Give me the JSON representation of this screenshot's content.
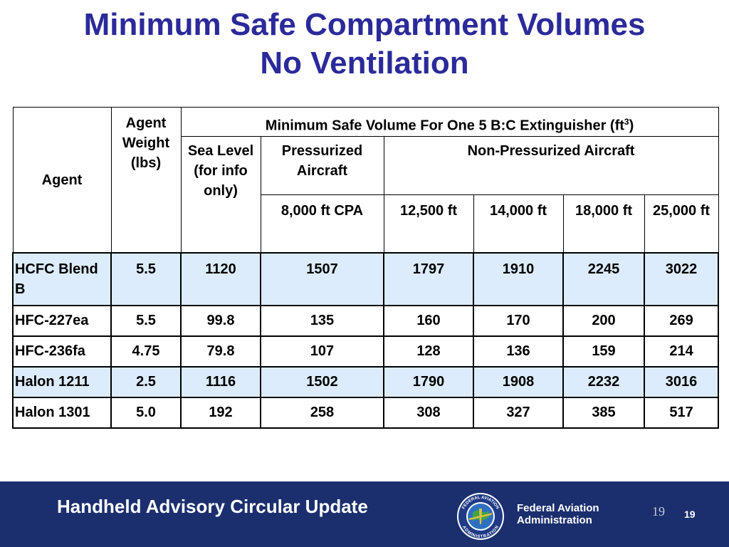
{
  "title": {
    "line1": "Minimum Safe Compartment Volumes",
    "line2": "No Ventilation"
  },
  "table": {
    "headers": {
      "agent": "Agent",
      "weight": "Agent Weight (lbs)",
      "min_volume": "Minimum Safe Volume For One 5 B:C Extinguisher (ft",
      "min_volume_sup": "3",
      "min_volume_end": ")",
      "sea_level": "Sea Level (for info only)",
      "pressurized": "Pressurized Aircraft",
      "non_pressurized": "Non-Pressurized Aircraft",
      "cpa": "8,000 ft CPA",
      "alt1": "12,500 ft",
      "alt2": "14,000 ft",
      "alt3": "18,000 ft",
      "alt4": "25,000 ft"
    },
    "rows": [
      {
        "agent": "HCFC Blend B",
        "weight": "5.5",
        "sea": "1120",
        "cpa": "1507",
        "a1": "1797",
        "a2": "1910",
        "a3": "2245",
        "a4": "3022"
      },
      {
        "agent": "HFC-227ea",
        "weight": "5.5",
        "sea": "99.8",
        "cpa": "135",
        "a1": "160",
        "a2": "170",
        "a3": "200",
        "a4": "269"
      },
      {
        "agent": "HFC-236fa",
        "weight": "4.75",
        "sea": "79.8",
        "cpa": "107",
        "a1": "128",
        "a2": "136",
        "a3": "159",
        "a4": "214"
      },
      {
        "agent": "Halon 1211",
        "weight": "2.5",
        "sea": "1116",
        "cpa": "1502",
        "a1": "1790",
        "a2": "1908",
        "a3": "2232",
        "a4": "3016"
      },
      {
        "agent": "Halon 1301",
        "weight": "5.0",
        "sea": "192",
        "cpa": "258",
        "a1": "308",
        "a2": "327",
        "a3": "385",
        "a4": "517"
      }
    ]
  },
  "footer": {
    "title": "Handheld Advisory Circular Update",
    "org_line1": "Federal Aviation",
    "org_line2": "Administration",
    "seal_top": "FEDERAL AVIATION",
    "seal_bottom": "ADMINISTRATION",
    "page_serif": "19",
    "page_bold": "19"
  },
  "colors": {
    "title": "#2b2a9a",
    "highlight_row": "#dcecfc",
    "footer_bg": "#1b2f6e"
  },
  "icons": {
    "seal": "faa-seal-icon"
  }
}
